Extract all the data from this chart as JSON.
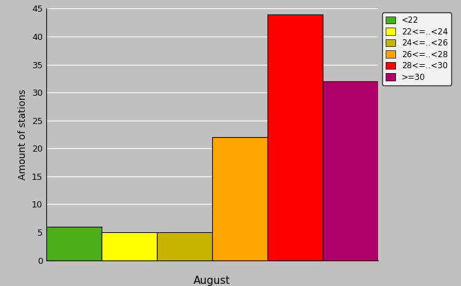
{
  "categories": [
    "<22",
    "22<=..<24",
    "24<=..<26",
    "26<=..<28",
    "28<=..<30",
    ">=30"
  ],
  "values": [
    6,
    5,
    5,
    22,
    44,
    32
  ],
  "colors": [
    "#4caf1a",
    "#ffff00",
    "#c8b400",
    "#ffa500",
    "#ff0000",
    "#b0006a"
  ],
  "xlabel": "August",
  "ylabel": "Amount of stations",
  "ylim": [
    0,
    45
  ],
  "yticks": [
    0,
    5,
    10,
    15,
    20,
    25,
    30,
    35,
    40,
    45
  ],
  "background_color": "#c0c0c0",
  "bar_edge_color": "#000000",
  "figsize": [
    6.67,
    4.15
  ],
  "dpi": 100,
  "legend_fontsize": 8.5
}
